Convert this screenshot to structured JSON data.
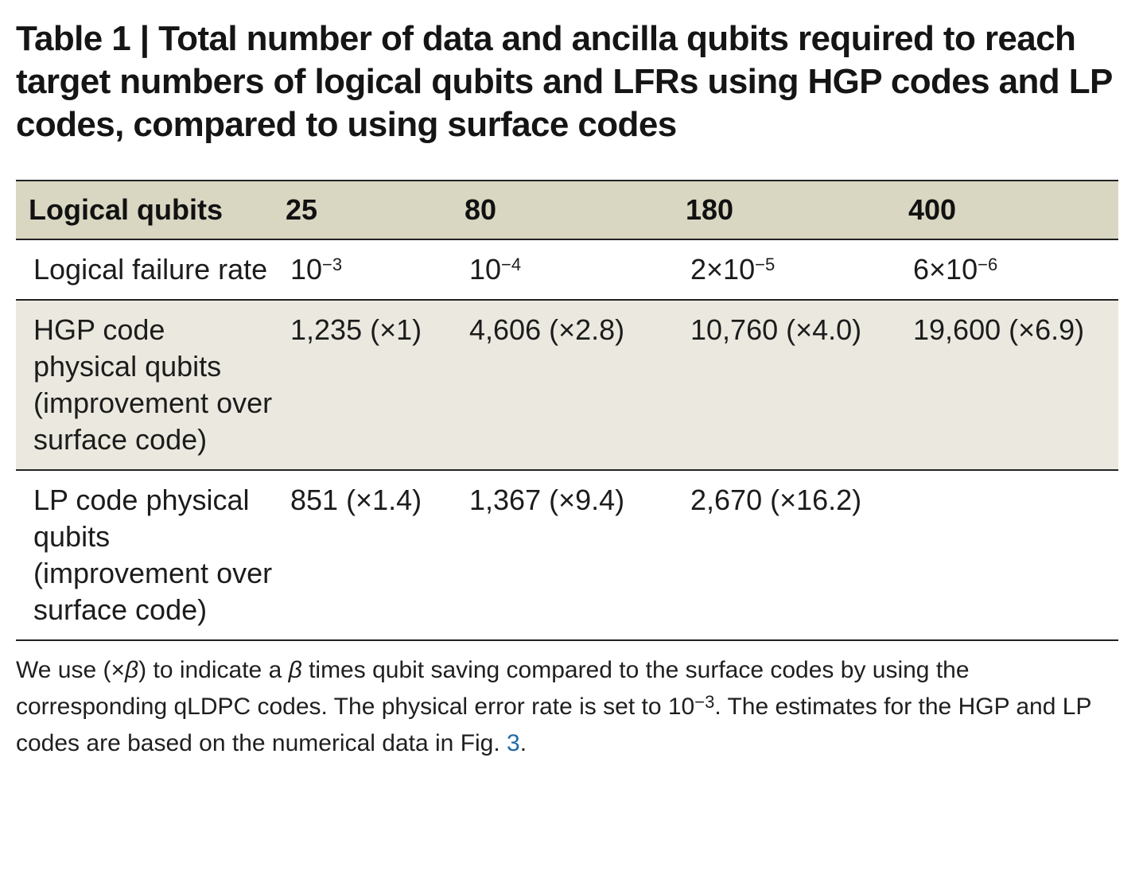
{
  "title": "Table 1 | Total number of data and ancilla qubits required to reach target numbers of logical qubits and LFRs using HGP codes and LP codes, compared to using surface codes",
  "table": {
    "header": [
      "Logical qubits",
      "25",
      "80",
      "180",
      "400"
    ],
    "rows": [
      {
        "label": "Logical failure rate",
        "cells": [
          {
            "base": "10",
            "exp": "−3"
          },
          {
            "base": "10",
            "exp": "−4"
          },
          {
            "base": "2×10",
            "exp": "−5"
          },
          {
            "base": "6×10",
            "exp": "−6"
          }
        ]
      },
      {
        "label": "HGP code physical qubits (improvement over surface code)",
        "cells": [
          "1,235 (×1)",
          "4,606 (×2.8)",
          "10,760 (×4.0)",
          "19,600 (×6.9)"
        ]
      },
      {
        "label": "LP code physical qubits (improvement over surface code)",
        "cells": [
          "851 (×1.4)",
          "1,367 (×9.4)",
          "2,670 (×16.2)",
          ""
        ]
      }
    ]
  },
  "footnote": {
    "part1": "We use (×",
    "beta1": "β",
    "part2": ") to indicate a ",
    "beta2": "β",
    "part3": " times qubit saving compared to the surface codes by using the corresponding qLDPC codes. The physical error rate is set to 10",
    "exp": "−3",
    "part4": ". The estimates for the HGP and LP codes are based on the numerical data in Fig. ",
    "fig_ref": "3",
    "part5": "."
  },
  "colors": {
    "header_bg": "#d9d6c2",
    "shaded_row_bg": "#ebe9df",
    "link": "#1f6aa8"
  }
}
